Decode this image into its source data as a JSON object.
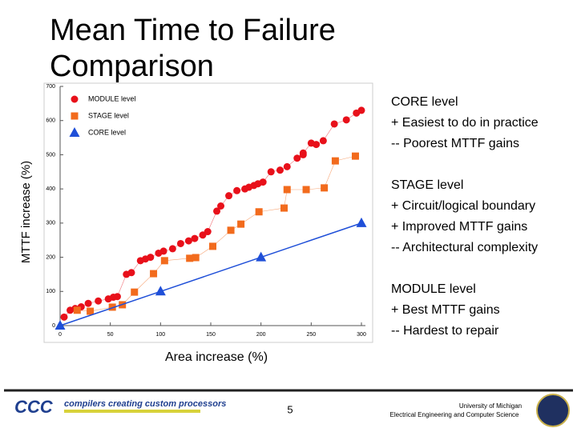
{
  "slide": {
    "footer": {
      "logo": "CCC",
      "tagline": "compilers creating custom processors",
      "page": "5",
      "university": "University of Michigan",
      "department": "Electrical Engineering and Computer Science"
    },
    "notes": [
      {
        "heading": "CORE level",
        "lines": [
          "+ Easiest to do in practice",
          "-- Poorest MTTF gains"
        ]
      },
      {
        "heading": "STAGE level",
        "lines": [
          "+ Circuit/logical boundary",
          "+ Improved MTTF gains",
          "-- Architectural complexity"
        ]
      },
      {
        "heading": "MODULE level",
        "lines": [
          "+ Best MTTF gains",
          "-- Hardest to repair"
        ]
      }
    ]
  },
  "chart_data": {
    "type": "scatter",
    "title": "Mean Time to Failure Comparison",
    "x_label": "Area increase (%)",
    "y_label": "MTTF increase (%)",
    "xlim": [
      0,
      300
    ],
    "xticks": [
      0,
      50,
      100,
      150,
      200,
      250,
      300
    ],
    "ylim": [
      0,
      700
    ],
    "yticks": [
      0,
      100,
      200,
      300,
      400,
      500,
      600,
      700
    ],
    "grid": false,
    "legend": "upper left",
    "series": [
      {
        "name": "MODULE level",
        "color": "#e8101a",
        "marker": "circle",
        "x": [
          4,
          10,
          15,
          21,
          28,
          38,
          48,
          53,
          57,
          66,
          71,
          80,
          85,
          90,
          98,
          103,
          112,
          120,
          128,
          134,
          142,
          147,
          156,
          160,
          168,
          176,
          184,
          188,
          193,
          197,
          202,
          210,
          219,
          226,
          236,
          242,
          242,
          250,
          255,
          262,
          273,
          285,
          295,
          300
        ],
        "y": [
          25,
          45,
          50,
          55,
          65,
          72,
          78,
          83,
          85,
          150,
          155,
          190,
          195,
          200,
          212,
          218,
          225,
          240,
          248,
          255,
          265,
          275,
          335,
          350,
          380,
          395,
          400,
          405,
          410,
          415,
          420,
          450,
          455,
          465,
          490,
          500,
          505,
          534,
          530,
          541,
          590,
          602,
          622,
          630
        ]
      },
      {
        "name": "STAGE level",
        "color": "#f26b1d",
        "marker": "square",
        "x": [
          17,
          30,
          52,
          62,
          74,
          93,
          104,
          129,
          135,
          152,
          170,
          180,
          198,
          223,
          226,
          245,
          263,
          274,
          294
        ],
        "y": [
          45,
          42,
          54,
          61,
          98,
          152,
          190,
          197,
          199,
          232,
          279,
          297,
          333,
          344,
          398,
          398,
          403,
          482,
          496
        ]
      },
      {
        "name": "CORE level",
        "color": "#1f4fd8",
        "marker": "triangle",
        "x": [
          0,
          100,
          200,
          300
        ],
        "y": [
          0,
          100,
          200,
          300
        ]
      }
    ]
  }
}
